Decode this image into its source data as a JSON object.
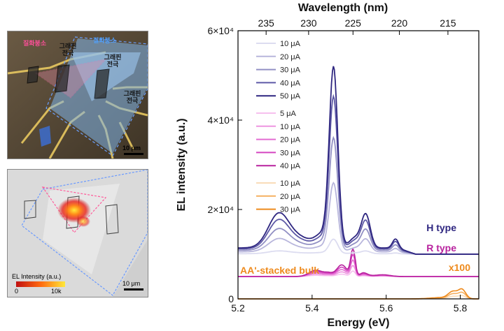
{
  "panels": {
    "micrograph": {
      "labels": {
        "hbn_left": "질화붕소",
        "hbn_right": "질화붕소",
        "graphene_1": "그래핀\n전극",
        "graphene_2": "그래핀\n전극",
        "graphene_3": "그래핀\n전극"
      },
      "scale_bar": "10 μm"
    },
    "el_map": {
      "colorbar_title": "EL Intensity (a.u.)",
      "colorbar_min": "0",
      "colorbar_max": "10k",
      "scale_bar": "10 μm"
    }
  },
  "chart_data": {
    "type": "line",
    "xlabel": "Energy (eV)",
    "ylabel": "EL intensity (a.u.)",
    "top_xlabel": "Wavelength (nm)",
    "xlim": [
      5.2,
      5.85
    ],
    "ylim": [
      0,
      60000
    ],
    "x_ticks": [
      "5.2",
      "5.4",
      "5.6",
      "5.8"
    ],
    "x_tick_values": [
      5.2,
      5.4,
      5.6,
      5.8
    ],
    "y_ticks": [
      "0",
      "2×10⁴",
      "4×10⁴",
      "6×10⁴"
    ],
    "y_tick_values": [
      0,
      20000,
      40000,
      60000
    ],
    "top_ticks": [
      "235",
      "230",
      "225",
      "220",
      "215"
    ],
    "top_tick_values": [
      235,
      230,
      225,
      220,
      215
    ],
    "annotations": {
      "h_type": "H type",
      "r_type": "R type",
      "bulk": "AA'-stacked bulk",
      "scale": "x100"
    },
    "legend_groups": [
      {
        "group": "H type",
        "entries": [
          {
            "label": "10 μA",
            "color": "#dcdcf0"
          },
          {
            "label": "20 μA",
            "color": "#b8b6dc"
          },
          {
            "label": "30 μA",
            "color": "#9290c4"
          },
          {
            "label": "40 μA",
            "color": "#5e59a6"
          },
          {
            "label": "50 μA",
            "color": "#2e2680"
          }
        ]
      },
      {
        "group": "R type",
        "entries": [
          {
            "label": "5 μA",
            "color": "#f6c0ee"
          },
          {
            "label": "10 μA",
            "color": "#ee95e0"
          },
          {
            "label": "20 μA",
            "color": "#e36cd2"
          },
          {
            "label": "30 μA",
            "color": "#d444c0"
          },
          {
            "label": "40 μA",
            "color": "#b8229e"
          }
        ]
      },
      {
        "group": "AA'-stacked bulk",
        "entries": [
          {
            "label": "10 μA",
            "color": "#f9dcb8"
          },
          {
            "label": "20 μA",
            "color": "#f5b060"
          },
          {
            "label": "30 μA",
            "color": "#ee8a1c"
          }
        ]
      }
    ],
    "series_shape": {
      "H": {
        "baseline": 10000,
        "peaks_eV": [
          5.31,
          5.46,
          5.545,
          5.625
        ],
        "max_peak_heights_at_50uA": [
          7500,
          39500,
          7500,
          2000
        ]
      },
      "R": {
        "baseline": 5000,
        "peaks_eV": [
          5.41,
          5.48,
          5.51,
          5.59
        ],
        "max_peak_heights_at_40uA": [
          1500,
          3500,
          6000,
          500
        ]
      },
      "bulk": {
        "baseline": 0,
        "peaks_eV": [
          5.78,
          5.805
        ],
        "max_peak_heights_at_30uA": [
          1500,
          2000
        ]
      }
    }
  }
}
